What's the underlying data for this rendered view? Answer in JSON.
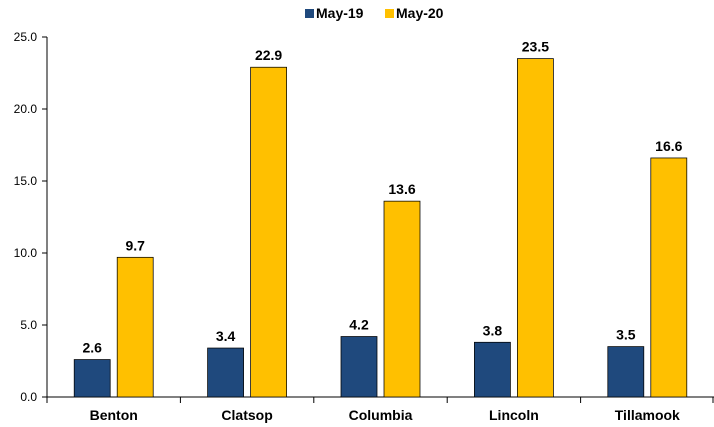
{
  "chart_data": {
    "type": "bar",
    "categories": [
      "Benton",
      "Clatsop",
      "Columbia",
      "Lincoln",
      "Tillamook"
    ],
    "series": [
      {
        "name": "May-19",
        "color": "#1F497D",
        "values": [
          2.6,
          3.4,
          4.2,
          3.8,
          3.5
        ]
      },
      {
        "name": "May-20",
        "color": "#FFC000",
        "values": [
          9.7,
          22.9,
          13.6,
          23.5,
          16.6
        ]
      }
    ],
    "y_ticks": [
      "0.0",
      "5.0",
      "10.0",
      "15.0",
      "20.0",
      "25.0"
    ],
    "ylim": [
      0,
      25
    ],
    "data_labels": true,
    "grid": false,
    "legend_position": "top"
  }
}
